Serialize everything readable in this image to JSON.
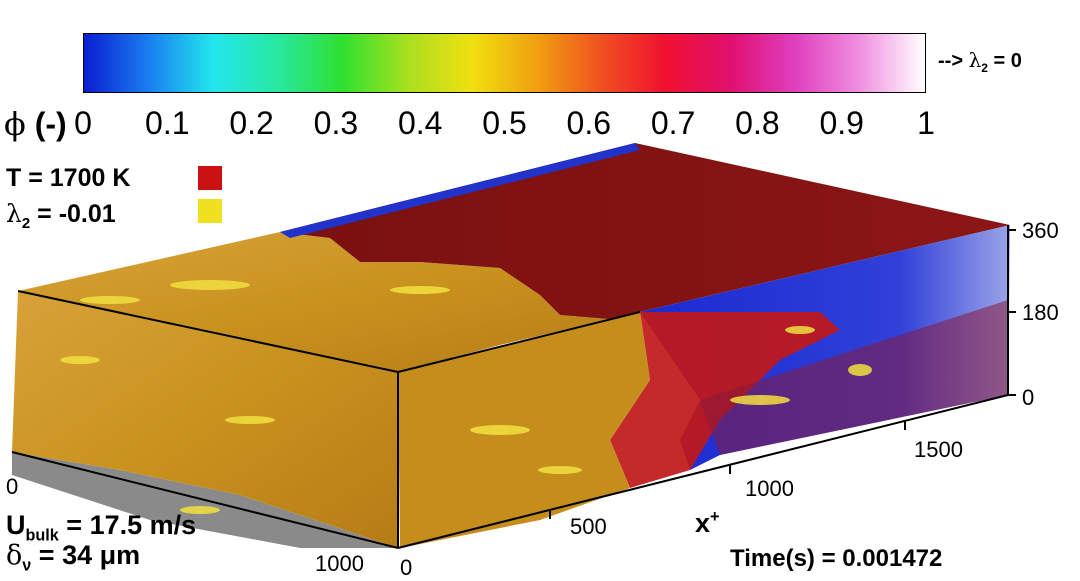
{
  "colorbar": {
    "variable_symbol": "ϕ",
    "variable_unit": "(-)",
    "ticks": [
      "0",
      "0.1",
      "0.2",
      "0.3",
      "0.4",
      "0.5",
      "0.6",
      "0.7",
      "0.8",
      "0.9",
      "1"
    ],
    "note_prefix": "-->",
    "note_symbol": "λ",
    "note_sub": "2",
    "note_value": "= 0",
    "colors": [
      "#0a1ed0",
      "#1a7ef0",
      "#22e6ee",
      "#28e8a0",
      "#30e030",
      "#a8e020",
      "#f0e010",
      "#f0a010",
      "#f05020",
      "#f01030",
      "#e01070",
      "#e040c0",
      "#f090e0",
      "#ffffff"
    ]
  },
  "legend": {
    "temperature_label": "T = 1700 K",
    "temperature_color": "#cc1111",
    "lambda_symbol": "λ",
    "lambda_sub": "2",
    "lambda_value": "= -0.01",
    "lambda_color": "#f0e020"
  },
  "axes": {
    "x_ticks": [
      "500",
      "1000",
      "1500"
    ],
    "x_label": "x",
    "x_label_sup": "+",
    "z_ticks": [
      "0",
      "180",
      "360"
    ],
    "y_ticks": [
      "0",
      "1000"
    ],
    "origin_label": "0"
  },
  "annotations": {
    "ubulk_symbol": "U",
    "ubulk_sub": "bulk",
    "ubulk_value": "= 17.5 m/s",
    "delta_symbol": "δ",
    "delta_sub": "ν",
    "delta_value": "= 34 μm",
    "time_label": "Time(s) = 0.001472"
  }
}
